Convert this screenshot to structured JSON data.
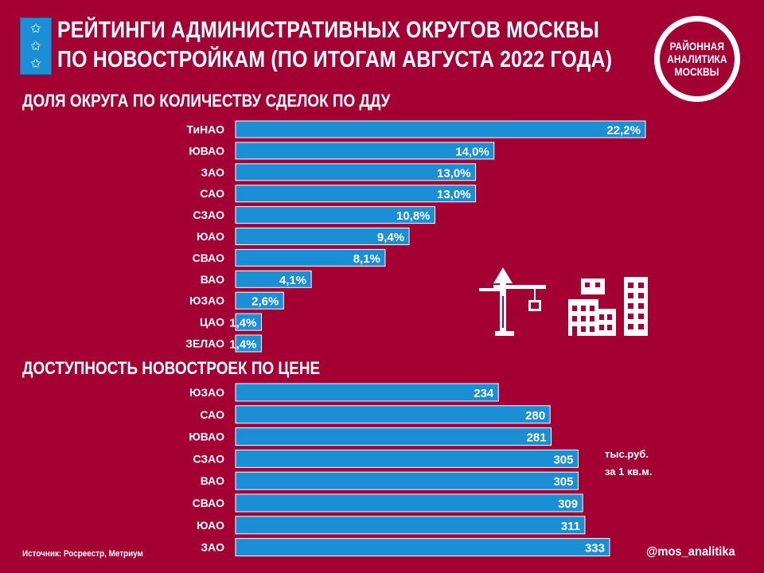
{
  "title": {
    "line1": "РЕЙТИНГИ АДМИНИСТРАТИВНЫХ ОКРУГОВ МОСКВЫ",
    "line2": "ПО НОВОСТРОЙКАМ (ПО ИТОГАМ АВГУСТА 2022 ГОДА)"
  },
  "logo": {
    "line1": "РАЙОННАЯ",
    "line2": "АНАЛИТИКА",
    "line3": "МОСКВЫ"
  },
  "stars": [
    "✩",
    "✩",
    "✩"
  ],
  "colors": {
    "background": "#A50034",
    "bar": "#1A8FD6",
    "text": "#FFFFFF"
  },
  "icon": "construction-crane-buildings-icon",
  "chart_data": [
    {
      "type": "bar",
      "orientation": "horizontal",
      "title": "ДОЛЯ ОКРУГА ПО КОЛИЧЕСТВУ СДЕЛОК ПО ДДУ",
      "categories": [
        "ТиНАО",
        "ЮВАО",
        "ЗАО",
        "САО",
        "СЗАО",
        "ЮАО",
        "СВАО",
        "ВАО",
        "ЮЗАО",
        "ЦАО",
        "ЗЕЛАО"
      ],
      "values": [
        22.2,
        14.0,
        13.0,
        13.0,
        10.8,
        9.4,
        8.1,
        4.1,
        2.6,
        1.4,
        1.4
      ],
      "value_labels": [
        "22,2%",
        "14,0%",
        "13,0%",
        "13,0%",
        "10,8%",
        "9,4%",
        "8,1%",
        "4,1%",
        "2,6%",
        "1,4%",
        "1,4%"
      ],
      "xlim": [
        0,
        22.2
      ],
      "grid": false
    },
    {
      "type": "bar",
      "orientation": "horizontal",
      "title": "ДОСТУПНОСТЬ НОВОСТРОЕК ПО ЦЕНЕ",
      "categories": [
        "ЮЗАО",
        "САО",
        "ЮВАО",
        "СЗАО",
        "ВАО",
        "СВАО",
        "ЮАО",
        "ЗАО"
      ],
      "values": [
        234,
        280,
        281,
        305,
        305,
        309,
        311,
        333
      ],
      "value_labels": [
        "234",
        "280",
        "281",
        "305",
        "305",
        "309",
        "311",
        "333"
      ],
      "unit_line1": "тыс.руб.",
      "unit_line2": "за 1 кв.м.",
      "xlim": [
        0,
        333
      ],
      "grid": false
    }
  ],
  "footer": {
    "source": "Источник: Росреестр, Метриум",
    "handle": "@mos_analitika"
  }
}
